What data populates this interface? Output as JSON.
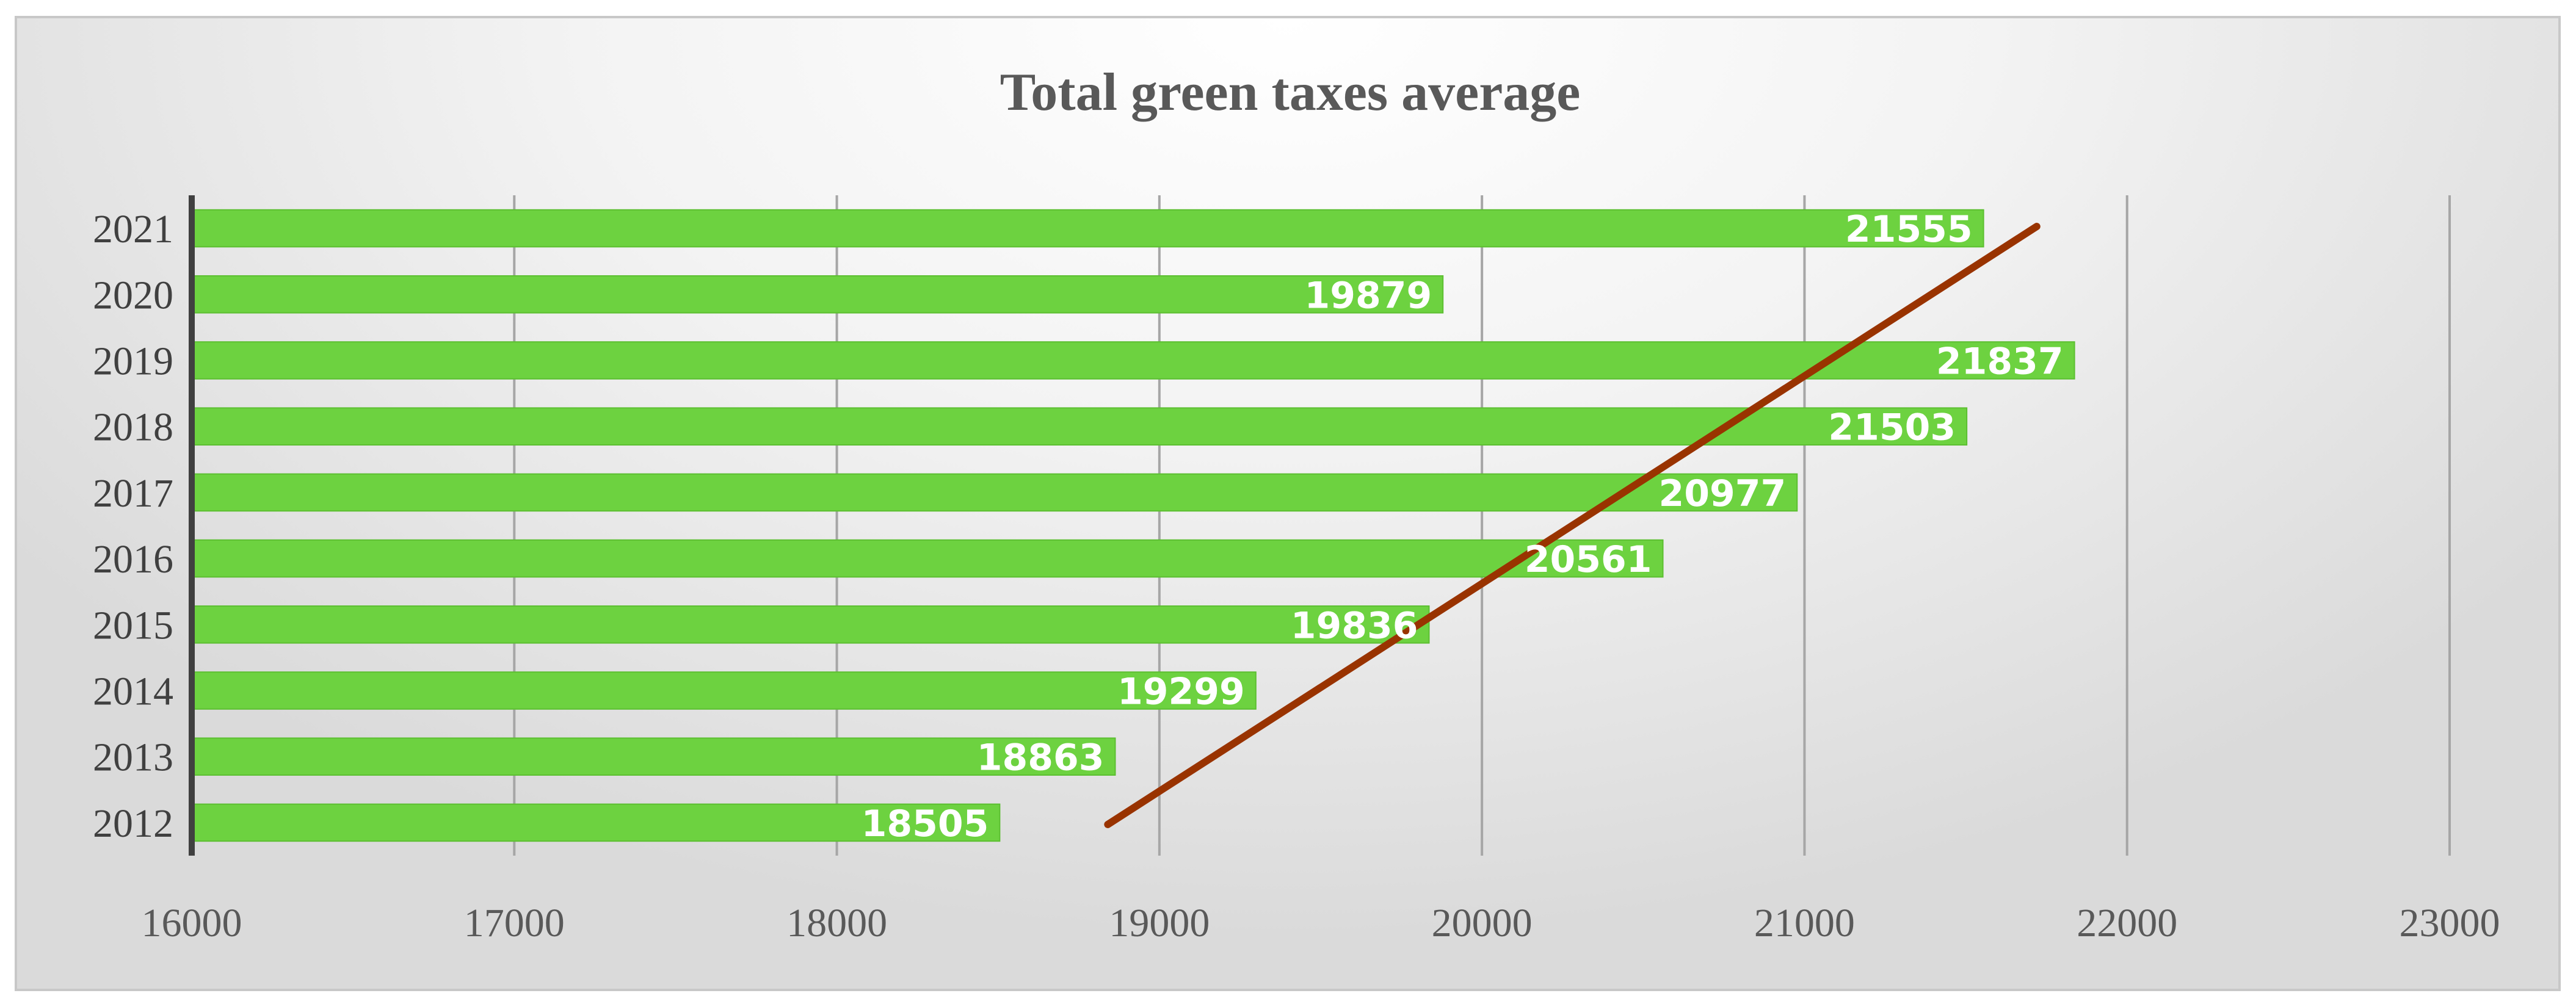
{
  "chart_data": {
    "type": "bar",
    "orientation": "horizontal",
    "title": "Total green taxes average",
    "categories": [
      "2012",
      "2013",
      "2014",
      "2015",
      "2016",
      "2017",
      "2018",
      "2019",
      "2020",
      "2021"
    ],
    "series": [
      {
        "name": "Total green taxes average",
        "values": [
          18505,
          18863,
          19299,
          19836,
          20561,
          20977,
          21503,
          21837,
          19879,
          21555
        ]
      }
    ],
    "data_labels": [
      "18505",
      "18863",
      "19299",
      "19836",
      "20561",
      "20977",
      "21503",
      "21837",
      "19879",
      "21555"
    ],
    "xlim": [
      16000,
      23000
    ],
    "xticks": [
      16000,
      17000,
      18000,
      19000,
      20000,
      21000,
      22000,
      23000
    ],
    "xtick_labels": [
      "16000",
      "17000",
      "18000",
      "19000",
      "20000",
      "21000",
      "22000",
      "23000"
    ],
    "trendline": {
      "type": "linear",
      "from_category": "2012",
      "to_category": "2021",
      "from_value": 18840,
      "to_value": 21720
    },
    "grid": "vertical",
    "legend": "none",
    "xlabel": "",
    "ylabel": "",
    "colors": {
      "bar": "#6dd240",
      "bar_edge": "#5cbf31",
      "trendline": "#993300",
      "grid": "#a6a6a6",
      "axis": "#404040"
    }
  }
}
